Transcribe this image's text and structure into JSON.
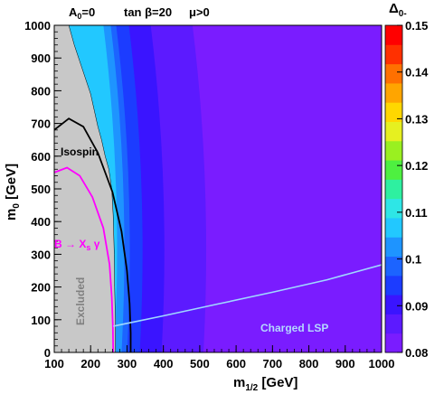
{
  "chart_data": {
    "type": "heatmap",
    "header": {
      "a0": [
        "A",
        "0",
        "=0"
      ],
      "tanb": "tan β=20",
      "mu": "μ>0"
    },
    "xlabel": [
      "m",
      "1/2",
      " [GeV]"
    ],
    "ylabel": [
      "m",
      "0",
      " [GeV]"
    ],
    "xlim": [
      100,
      1000
    ],
    "ylim": [
      0,
      1000
    ],
    "xticks": [
      "100",
      "200",
      "300",
      "400",
      "500",
      "600",
      "700",
      "800",
      "900",
      "1000"
    ],
    "yticks": [
      "0",
      "100",
      "200",
      "300",
      "400",
      "500",
      "600",
      "700",
      "800",
      "900",
      "1000"
    ],
    "colorbar": {
      "title": [
        "Δ",
        "0-"
      ],
      "range": [
        0.08,
        0.15
      ],
      "ticks": [
        "0.15",
        "0.14",
        "0.13",
        "0.12",
        "0.11",
        "0.1",
        "0.09",
        "0.08"
      ]
    },
    "regions": [
      {
        "name": "0.080",
        "color": "#7a1cff",
        "x_boundary": 1000
      },
      {
        "name": "0.086",
        "color": "#5c1aff",
        "x_boundary": 510
      },
      {
        "name": "0.088",
        "color": "#3a14ff",
        "x_boundary": 395
      },
      {
        "name": "0.090",
        "color": "#1c3cff",
        "x_boundary": 335
      },
      {
        "name": "0.093",
        "color": "#1c64ff",
        "x_boundary": 300
      },
      {
        "name": "0.096",
        "color": "#1e94ff",
        "x_boundary": 285
      },
      {
        "name": "0.099",
        "color": "#22c8ff",
        "x_boundary": 265
      }
    ],
    "excluded_boundary": [
      [
        105,
        1000
      ],
      [
        140,
        1000
      ],
      [
        155,
        940
      ],
      [
        170,
        890
      ],
      [
        185,
        840
      ],
      [
        200,
        790
      ],
      [
        210,
        740
      ],
      [
        220,
        690
      ],
      [
        230,
        650
      ],
      [
        240,
        600
      ],
      [
        250,
        560
      ],
      [
        258,
        500
      ],
      [
        262,
        420
      ],
      [
        265,
        300
      ],
      [
        266,
        200
      ],
      [
        268,
        100
      ],
      [
        268,
        0
      ]
    ],
    "curves": [
      {
        "name": "Isospin",
        "color": "#000000",
        "points": [
          [
            100,
            680
          ],
          [
            140,
            715
          ],
          [
            180,
            690
          ],
          [
            220,
            610
          ],
          [
            260,
            490
          ],
          [
            285,
            370
          ],
          [
            300,
            250
          ],
          [
            307,
            150
          ],
          [
            310,
            60
          ],
          [
            310,
            0
          ]
        ]
      },
      {
        "name": "B → Xs γ",
        "color": "#ff00ff",
        "points": [
          [
            100,
            550
          ],
          [
            135,
            565
          ],
          [
            170,
            540
          ],
          [
            205,
            475
          ],
          [
            235,
            380
          ],
          [
            252,
            270
          ],
          [
            258,
            170
          ],
          [
            261,
            80
          ],
          [
            262,
            0
          ]
        ]
      },
      {
        "name": "Charged LSP",
        "color": "#9fd8ff",
        "points": [
          [
            262,
            80
          ],
          [
            400,
            112
          ],
          [
            550,
            148
          ],
          [
            700,
            184
          ],
          [
            850,
            222
          ],
          [
            1000,
            268
          ]
        ]
      }
    ],
    "annotations": {
      "isospin": "Isospin",
      "bxs": [
        "B → X",
        "s",
        " γ"
      ],
      "excluded": "Excluded",
      "charged_lsp": "Charged LSP"
    }
  }
}
